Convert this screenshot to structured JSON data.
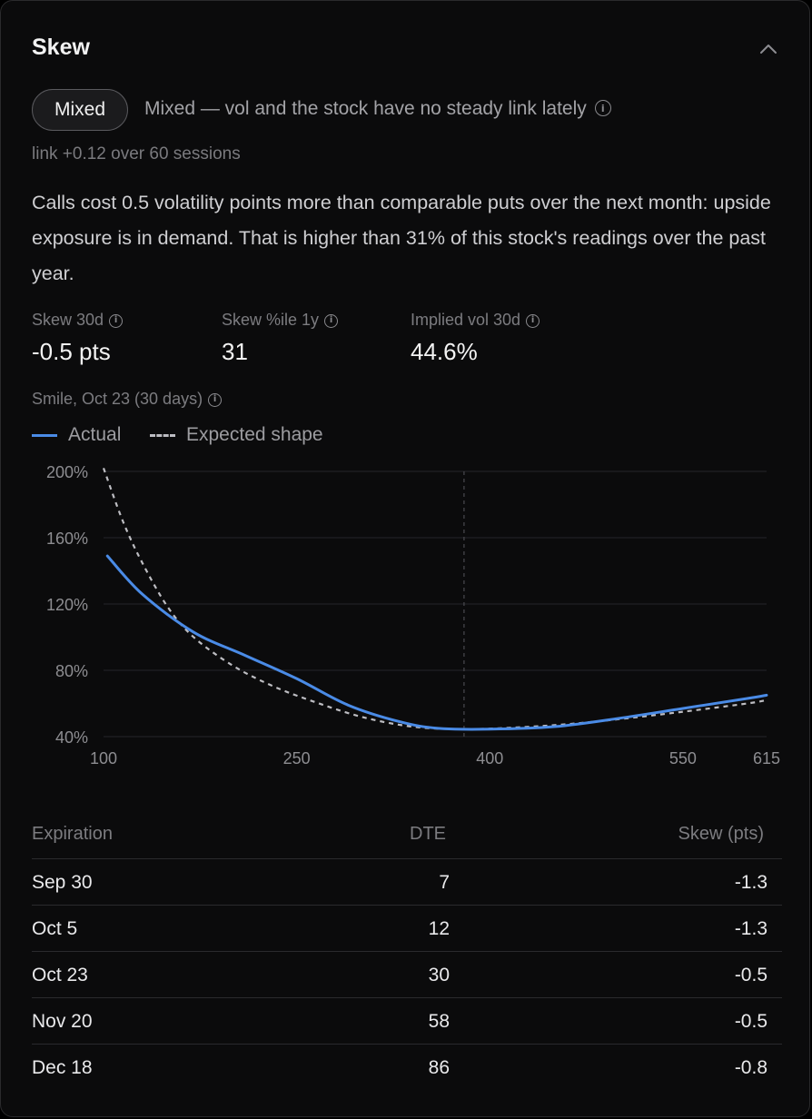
{
  "card": {
    "title": "Skew"
  },
  "regime": {
    "pill_label": "Mixed",
    "description": "Mixed — vol and the stock have no steady link lately",
    "link_line": "link +0.12 over 60 sessions"
  },
  "summary": "Calls cost 0.5 volatility points more than comparable puts over the next month: upside exposure is in demand. That is higher than 31% of this stock's readings over the past year.",
  "stats": [
    {
      "label": "Skew 30d",
      "value": "-0.5 pts"
    },
    {
      "label": "Skew %ile 1y",
      "value": "31"
    },
    {
      "label": "Implied vol 30d",
      "value": "44.6%"
    }
  ],
  "smile": {
    "title": "Smile, Oct 23 (30 days)",
    "legend_actual": "Actual",
    "legend_expected": "Expected shape"
  },
  "chart_data": {
    "type": "line",
    "title": "Smile, Oct 23 (30 days)",
    "xlim": [
      100,
      615
    ],
    "ylim": [
      40,
      200
    ],
    "x_ticks": [
      "100",
      "250",
      "400",
      "550",
      "615"
    ],
    "y_ticks": [
      "200%",
      "160%",
      "120%",
      "80%",
      "40%"
    ],
    "grid": "horizontal",
    "marker_x": 380,
    "colors": {
      "actual": "#4a8be6",
      "expected": "#bdbdc2"
    },
    "series": [
      {
        "name": "Actual",
        "style": "solid",
        "x": [
          103,
          130,
          170,
          210,
          250,
          290,
          330,
          360,
          400,
          450,
          500,
          550,
          600,
          615
        ],
        "y": [
          149,
          126,
          103,
          89,
          75,
          59,
          49,
          45,
          44.5,
          46,
          51,
          57,
          63,
          65
        ]
      },
      {
        "name": "Expected shape",
        "style": "dashed",
        "x": [
          100,
          115,
          130,
          150,
          170,
          200,
          230,
          260,
          300,
          340,
          380,
          420,
          460,
          500,
          550,
          600,
          615
        ],
        "y": [
          202,
          170,
          145,
          118,
          100,
          83,
          71,
          62,
          52,
          46,
          44.5,
          45.5,
          47.5,
          50.5,
          55,
          60,
          62
        ]
      }
    ]
  },
  "table": {
    "headers": {
      "expiration": "Expiration",
      "dte": "DTE",
      "skew": "Skew (pts)"
    },
    "rows": [
      {
        "expiration": "Sep 30",
        "dte": "7",
        "skew": "-1.3"
      },
      {
        "expiration": "Oct 5",
        "dte": "12",
        "skew": "-1.3"
      },
      {
        "expiration": "Oct 23",
        "dte": "30",
        "skew": "-0.5"
      },
      {
        "expiration": "Nov 20",
        "dte": "58",
        "skew": "-0.5"
      },
      {
        "expiration": "Dec 18",
        "dte": "86",
        "skew": "-0.8"
      }
    ]
  }
}
